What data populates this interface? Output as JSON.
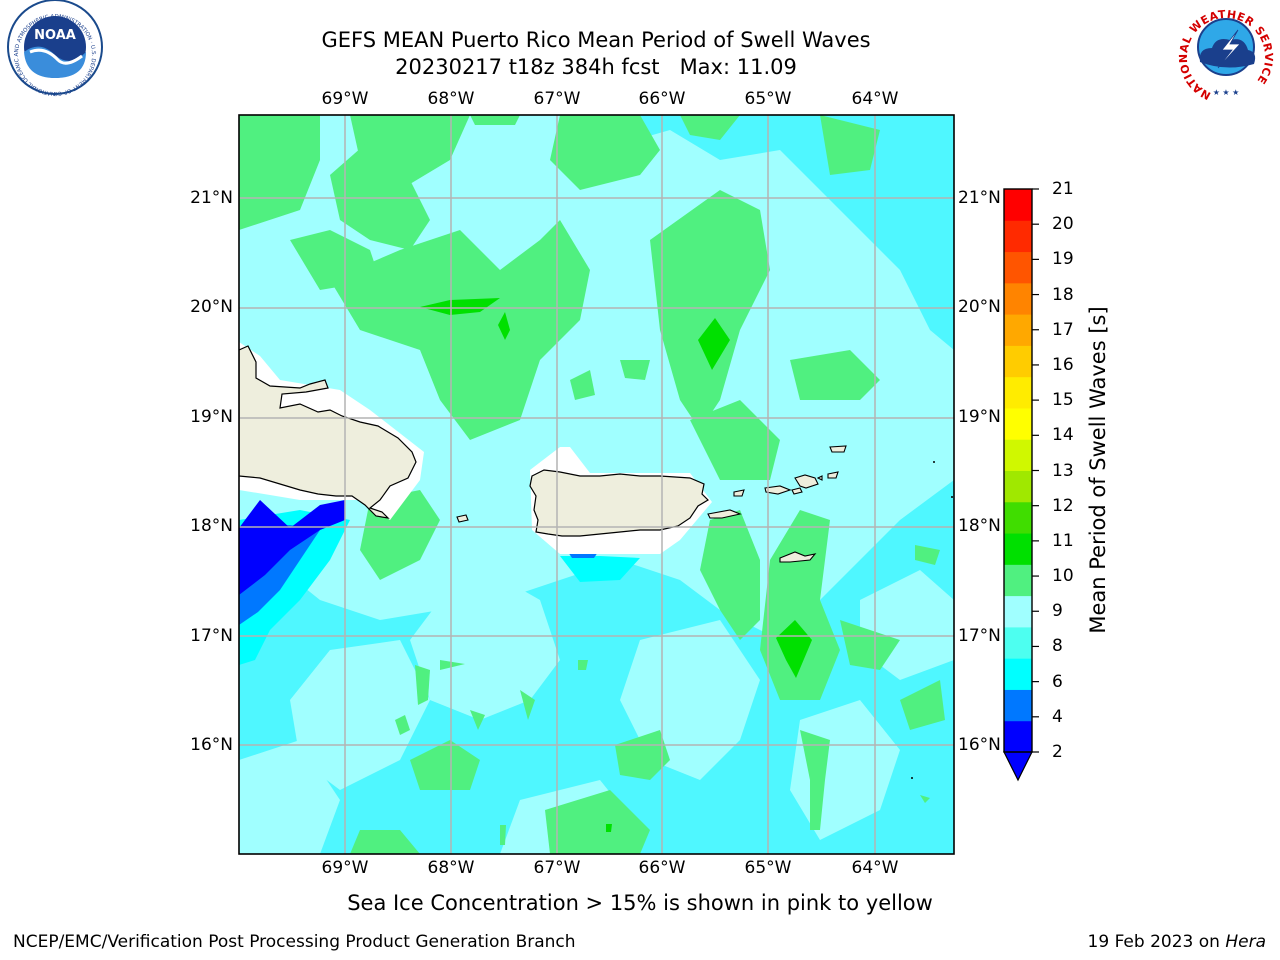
{
  "title": {
    "line1": "GEFS MEAN Puerto Rico Mean Period of Swell Waves",
    "line2": "20230217 t18z 384h fcst   Max: 11.09"
  },
  "axes": {
    "lon_labels": [
      "69°W",
      "68°W",
      "67°W",
      "66°W",
      "65°W",
      "64°W"
    ],
    "lat_labels": [
      "21°N",
      "20°N",
      "19°N",
      "18°N",
      "17°N",
      "16°N"
    ]
  },
  "colorbar": {
    "title": "Mean Period of Swell Waves [s]",
    "tick_labels": [
      "21",
      "20",
      "19",
      "18",
      "17",
      "16",
      "15",
      "14",
      "13",
      "12",
      "11",
      "10",
      "9",
      "8",
      "6",
      "4",
      "2"
    ],
    "level_colors": [
      "#0000ff",
      "#0078ff",
      "#00ffff",
      "#4dfff0",
      "#a0ffff",
      "#50f080",
      "#00e000",
      "#40dd00",
      "#a0e800",
      "#d0f800",
      "#ffff00",
      "#ffec00",
      "#ffcc00",
      "#ffa800",
      "#ff8400",
      "#ff5500",
      "#ff2a00",
      "#ff0000"
    ]
  },
  "legend_colors": {
    "ocean_base": "#4ff7ff",
    "swell_8_9": "#a0ffff",
    "swell_9_10": "#50f080",
    "swell_10_11": "#00e000",
    "swell_4_6": "#00ffff",
    "swell_2_4": "#0000ff",
    "land": "#eeeedd",
    "grid": "#b4b4b4"
  },
  "logos": {
    "noaa_text": "NOAA",
    "noaa_ring": "NATIONAL OCEANIC AND ATMOSPHERIC ADMINISTRATION · U.S. DEPARTMENT OF COMMERCE",
    "nws_ring": "NATIONAL WEATHER SERVICE"
  },
  "footer": {
    "note": "Sea Ice Concentration > 15% is shown in pink to yellow",
    "branch": "NCEP/EMC/Verification Post Processing Product Generation Branch",
    "date": "19 Feb 2023 on ",
    "machine": "Hera"
  }
}
